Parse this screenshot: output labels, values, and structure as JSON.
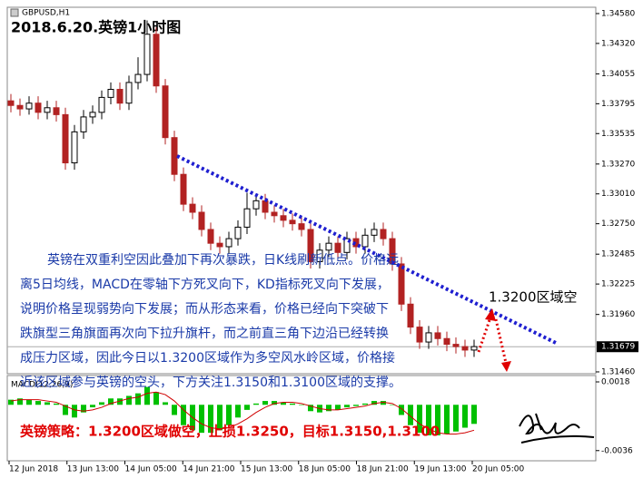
{
  "chart_data": [
    {
      "type": "candlestick",
      "title": "GBPUSD,H1",
      "heading": "2018.6.20.英镑1小时图",
      "up_color": "#000000",
      "down_color": "#b22222",
      "grid": false,
      "ylim": [
        1.31444,
        1.34635
      ],
      "yticks": [
        {
          "value": 1.3458,
          "label": "1.34580"
        },
        {
          "value": 1.3432,
          "label": "1.34320"
        },
        {
          "value": 1.34055,
          "label": "1.34055"
        },
        {
          "value": 1.33795,
          "label": "1.33795"
        },
        {
          "value": 1.33535,
          "label": "1.33535"
        },
        {
          "value": 1.3327,
          "label": "1.33270"
        },
        {
          "value": 1.3301,
          "label": "1.33010"
        },
        {
          "value": 1.3275,
          "label": "1.32750"
        },
        {
          "value": 1.32485,
          "label": "1.32485"
        },
        {
          "value": 1.32225,
          "label": "1.32225"
        },
        {
          "value": 1.3196,
          "label": "1.31960"
        },
        {
          "value": 1.3146,
          "label": "1.31460"
        }
      ],
      "last_price": {
        "value": 1.31679,
        "label": "1.31679"
      },
      "x_labels": [
        "12 Jun 2018",
        "13 Jun 13:00",
        "14 Jun 05:00",
        "14 Jun 21:00",
        "15 Jun 13:00",
        "18 Jun 05:00",
        "18 Jun 21:00",
        "19 Jun 13:00",
        "20 Jun 05:00"
      ],
      "open": [
        1.3382,
        1.3378,
        1.3375,
        1.338,
        1.3372,
        1.3376,
        1.337,
        1.3328,
        1.3355,
        1.3368,
        1.3372,
        1.3385,
        1.3392,
        1.338,
        1.3398,
        1.3405,
        1.344,
        1.3395,
        1.335,
        1.3318,
        1.3292,
        1.3285,
        1.327,
        1.3258,
        1.3255,
        1.3262,
        1.3272,
        1.3288,
        1.3295,
        1.3285,
        1.3282,
        1.3278,
        1.3275,
        1.327,
        1.3242,
        1.3252,
        1.3258,
        1.325,
        1.3262,
        1.3255,
        1.3265,
        1.327,
        1.3262,
        1.324,
        1.3205,
        1.3185,
        1.3172,
        1.318,
        1.3175,
        1.317,
        1.3168,
        1.3165
      ],
      "high": [
        1.3388,
        1.3384,
        1.3386,
        1.3386,
        1.3382,
        1.3382,
        1.3376,
        1.3361,
        1.3374,
        1.3378,
        1.3391,
        1.3398,
        1.3398,
        1.3404,
        1.342,
        1.3452,
        1.3446,
        1.3401,
        1.3356,
        1.3324,
        1.3298,
        1.3291,
        1.3276,
        1.3264,
        1.3268,
        1.3278,
        1.3302,
        1.3301,
        1.3301,
        1.3291,
        1.3288,
        1.3284,
        1.3281,
        1.3276,
        1.3258,
        1.3264,
        1.3264,
        1.3268,
        1.3268,
        1.3271,
        1.3276,
        1.3276,
        1.3268,
        1.3246,
        1.3211,
        1.3191,
        1.3186,
        1.3186,
        1.3181,
        1.3176,
        1.3174,
        1.3174
      ],
      "low": [
        1.3372,
        1.3369,
        1.337,
        1.3366,
        1.3366,
        1.3364,
        1.3322,
        1.3322,
        1.3349,
        1.3362,
        1.3366,
        1.3379,
        1.3374,
        1.3374,
        1.3392,
        1.3399,
        1.3389,
        1.3344,
        1.3312,
        1.3286,
        1.3279,
        1.3264,
        1.3252,
        1.3249,
        1.3249,
        1.3256,
        1.3266,
        1.3282,
        1.3279,
        1.3276,
        1.3272,
        1.3269,
        1.3264,
        1.3236,
        1.3236,
        1.3246,
        1.3244,
        1.3244,
        1.3249,
        1.3249,
        1.3259,
        1.3256,
        1.3234,
        1.3199,
        1.3179,
        1.3166,
        1.3166,
        1.3169,
        1.3164,
        1.3162,
        1.3159,
        1.3159
      ],
      "close": [
        1.3378,
        1.3375,
        1.338,
        1.3372,
        1.3376,
        1.337,
        1.3328,
        1.3355,
        1.3368,
        1.3372,
        1.3385,
        1.3392,
        1.338,
        1.3398,
        1.3405,
        1.344,
        1.3395,
        1.335,
        1.3318,
        1.3292,
        1.3285,
        1.327,
        1.3258,
        1.3255,
        1.3262,
        1.3272,
        1.3288,
        1.3295,
        1.3285,
        1.3282,
        1.3278,
        1.3275,
        1.327,
        1.3242,
        1.3252,
        1.3258,
        1.325,
        1.3262,
        1.3255,
        1.3265,
        1.327,
        1.3262,
        1.324,
        1.3205,
        1.3185,
        1.3172,
        1.318,
        1.3175,
        1.317,
        1.3168,
        1.3165,
        1.3168
      ],
      "annotation_lines": [
        "英镑在双重利空因此叠加下再次暴跌，日K线刷新低点。价格远",
        "离5日均线，MACD在零轴下方死叉向下，KD指标死叉向下发展，",
        "说明价格呈现弱势向下发展；而从形态来看，价格已经向下突破下",
        "跌旗型三角旗面再次向下拉升旗杆，而之前直三角下边沿已经转换",
        "成压力区域，因此今日以1.3200区域作为多空风水岭区域，价格接",
        "近该区域参与英镑的空头，下方关注1.3150和1.3100区域的支撑。"
      ],
      "target_label": "1.3200区域空",
      "strategy": "英镑策略：1.3200区域做空，止损1.3250，目标1.3150,1.3100"
    },
    {
      "type": "macd",
      "title": "MACD(12,26,9)",
      "ylim": [
        -0.0044,
        0.0023
      ],
      "yticks": [
        0.0018,
        -0.0036
      ],
      "histogram": {
        "color": "#00c000",
        "values": [
          0.0004,
          0.0005,
          0.0004,
          0.0003,
          0.0002,
          0.0001,
          -0.0008,
          -0.001,
          -0.0006,
          -0.0002,
          0.0002,
          0.0005,
          0.0005,
          0.0007,
          0.0009,
          0.0014,
          0.001,
          0.0002,
          -0.0008,
          -0.0016,
          -0.002,
          -0.0022,
          -0.0022,
          -0.002,
          -0.0016,
          -0.001,
          -0.0004,
          0.0001,
          0.0003,
          0.0003,
          0.0002,
          0.0001,
          0.0,
          -0.0005,
          -0.0006,
          -0.0005,
          -0.0004,
          -0.0002,
          -0.0001,
          0.0001,
          0.0003,
          0.0003,
          0.0,
          -0.0008,
          -0.0016,
          -0.0022,
          -0.0024,
          -0.0024,
          -0.0023,
          -0.0021,
          -0.0018,
          -0.0015
        ]
      },
      "signal": {
        "color": "#d00000",
        "values": [
          0.0003,
          0.0004,
          0.0004,
          0.0004,
          0.0003,
          0.0002,
          -0.0001,
          -0.0004,
          -0.0005,
          -0.0004,
          -0.0002,
          0.0001,
          0.0003,
          0.0005,
          0.0006,
          0.0009,
          0.001,
          0.0008,
          0.0003,
          -0.0004,
          -0.001,
          -0.0015,
          -0.0018,
          -0.0019,
          -0.0018,
          -0.0015,
          -0.0011,
          -0.0006,
          -0.0002,
          0.0001,
          0.0002,
          0.0002,
          0.0001,
          -0.0001,
          -0.0003,
          -0.0004,
          -0.0004,
          -0.0003,
          -0.0002,
          -0.0001,
          0.0001,
          0.0002,
          0.0001,
          -0.0003,
          -0.0009,
          -0.0015,
          -0.0019,
          -0.0022,
          -0.0023,
          -0.0023,
          -0.0022,
          -0.002
        ]
      }
    }
  ]
}
